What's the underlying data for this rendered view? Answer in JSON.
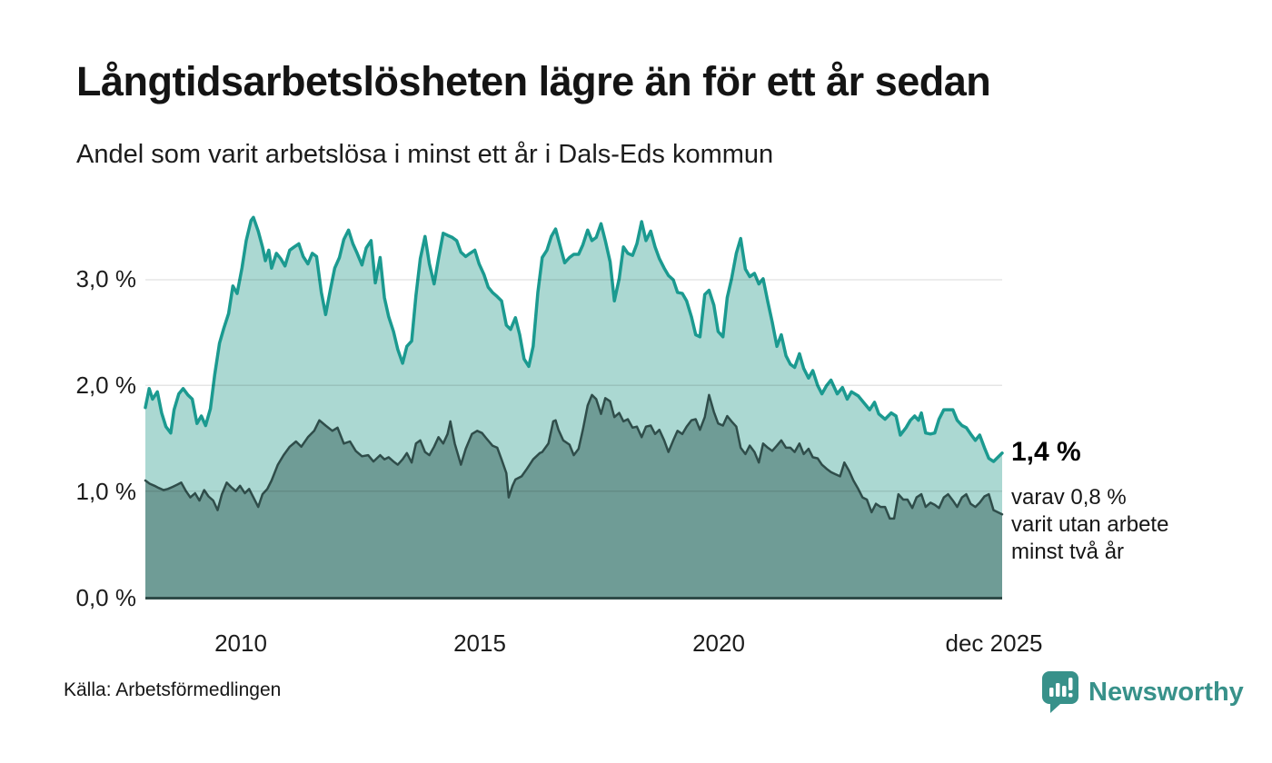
{
  "header": {
    "title": "Långtidsarbetslösheten lägre än för ett år sedan",
    "subtitle": "Andel som varit arbetslösa i minst ett år i Dals-Eds kommun"
  },
  "chart_data": {
    "type": "area",
    "title": "Långtidsarbetslösheten lägre än för ett år sedan",
    "subtitle": "Andel som varit arbetslösa i minst ett år i Dals-Eds kommun",
    "grid": true,
    "legend_position": "none",
    "baseline_color": "#2e4a47",
    "x_axis": {
      "range": [
        2008.0,
        2025.92
      ],
      "ticks": [
        "2010",
        "2015",
        "2020",
        "dec 2025"
      ],
      "tick_values": [
        2010,
        2015,
        2020,
        2025.75
      ]
    },
    "y_axis": {
      "range": [
        0,
        3.67
      ],
      "ticks": [
        "0,0 %",
        "1,0 %",
        "2,0 %",
        "3,0 %"
      ],
      "tick_values": [
        0,
        1,
        2,
        3
      ]
    },
    "annotation": {
      "value_label": "1,4 %",
      "lines": [
        "varav 0,8 %",
        "varit utan arbete",
        "minst två år"
      ]
    },
    "series": [
      {
        "name": "Arbetslösa minst ett år",
        "color": "#1b9a90",
        "fill": "#abd8d2",
        "x": [
          2008.0,
          2008.08,
          2008.15,
          2008.25,
          2008.34,
          2008.43,
          2008.53,
          2008.6,
          2008.7,
          2008.79,
          2008.89,
          2008.98,
          2009.08,
          2009.17,
          2009.26,
          2009.36,
          2009.45,
          2009.55,
          2009.64,
          2009.74,
          2009.83,
          2009.92,
          2010.02,
          2010.11,
          2010.21,
          2010.26,
          2010.36,
          2010.45,
          2010.51,
          2010.58,
          2010.64,
          2010.74,
          2010.83,
          2010.92,
          2011.02,
          2011.11,
          2011.21,
          2011.3,
          2011.4,
          2011.49,
          2011.58,
          2011.68,
          2011.77,
          2011.87,
          2011.96,
          2012.06,
          2012.15,
          2012.25,
          2012.34,
          2012.43,
          2012.53,
          2012.62,
          2012.72,
          2012.81,
          2012.91,
          2013.0,
          2013.09,
          2013.19,
          2013.28,
          2013.38,
          2013.47,
          2013.57,
          2013.66,
          2013.75,
          2013.85,
          2013.94,
          2014.04,
          2014.13,
          2014.23,
          2014.32,
          2014.42,
          2014.51,
          2014.6,
          2014.7,
          2014.79,
          2014.89,
          2014.98,
          2015.08,
          2015.17,
          2015.26,
          2015.36,
          2015.45,
          2015.55,
          2015.64,
          2015.74,
          2015.83,
          2015.92,
          2016.02,
          2016.11,
          2016.21,
          2016.3,
          2016.4,
          2016.49,
          2016.58,
          2016.68,
          2016.77,
          2016.87,
          2016.96,
          2017.06,
          2017.15,
          2017.25,
          2017.34,
          2017.43,
          2017.53,
          2017.62,
          2017.72,
          2017.81,
          2017.91,
          2018.0,
          2018.09,
          2018.19,
          2018.28,
          2018.38,
          2018.47,
          2018.57,
          2018.66,
          2018.75,
          2018.85,
          2018.94,
          2019.04,
          2019.13,
          2019.23,
          2019.32,
          2019.42,
          2019.51,
          2019.6,
          2019.7,
          2019.79,
          2019.89,
          2019.98,
          2020.08,
          2020.17,
          2020.26,
          2020.36,
          2020.45,
          2020.55,
          2020.64,
          2020.74,
          2020.83,
          2020.92,
          2021.02,
          2021.11,
          2021.21,
          2021.3,
          2021.4,
          2021.49,
          2021.58,
          2021.68,
          2021.77,
          2021.87,
          2021.96,
          2022.06,
          2022.15,
          2022.25,
          2022.34,
          2022.47,
          2022.58,
          2022.68,
          2022.77,
          2022.91,
          2023.04,
          2023.15,
          2023.25,
          2023.34,
          2023.47,
          2023.6,
          2023.7,
          2023.79,
          2023.91,
          2024.0,
          2024.09,
          2024.17,
          2024.23,
          2024.32,
          2024.42,
          2024.51,
          2024.6,
          2024.7,
          2024.79,
          2024.89,
          2024.98,
          2025.08,
          2025.17,
          2025.26,
          2025.36,
          2025.45,
          2025.55,
          2025.64,
          2025.74,
          2025.92
        ],
        "y": [
          1.79,
          1.97,
          1.87,
          1.94,
          1.74,
          1.61,
          1.55,
          1.77,
          1.92,
          1.97,
          1.91,
          1.87,
          1.64,
          1.71,
          1.62,
          1.78,
          2.1,
          2.4,
          2.54,
          2.68,
          2.94,
          2.87,
          3.11,
          3.37,
          3.56,
          3.59,
          3.46,
          3.31,
          3.18,
          3.28,
          3.11,
          3.25,
          3.2,
          3.13,
          3.28,
          3.31,
          3.34,
          3.22,
          3.15,
          3.25,
          3.22,
          2.88,
          2.67,
          2.91,
          3.11,
          3.21,
          3.38,
          3.47,
          3.34,
          3.25,
          3.14,
          3.3,
          3.37,
          2.97,
          3.21,
          2.83,
          2.65,
          2.51,
          2.34,
          2.21,
          2.37,
          2.42,
          2.85,
          3.2,
          3.41,
          3.15,
          2.96,
          3.2,
          3.44,
          3.42,
          3.4,
          3.37,
          3.26,
          3.22,
          3.25,
          3.28,
          3.15,
          3.05,
          2.93,
          2.88,
          2.84,
          2.8,
          2.57,
          2.53,
          2.64,
          2.48,
          2.25,
          2.18,
          2.37,
          2.88,
          3.21,
          3.28,
          3.41,
          3.48,
          3.31,
          3.16,
          3.21,
          3.24,
          3.24,
          3.33,
          3.47,
          3.37,
          3.4,
          3.53,
          3.37,
          3.17,
          2.8,
          3.01,
          3.31,
          3.25,
          3.23,
          3.34,
          3.55,
          3.37,
          3.46,
          3.31,
          3.2,
          3.11,
          3.04,
          3.0,
          2.88,
          2.87,
          2.8,
          2.65,
          2.48,
          2.46,
          2.86,
          2.9,
          2.76,
          2.51,
          2.46,
          2.83,
          3.01,
          3.25,
          3.39,
          3.1,
          3.03,
          3.06,
          2.96,
          3.01,
          2.79,
          2.6,
          2.37,
          2.48,
          2.28,
          2.2,
          2.17,
          2.3,
          2.16,
          2.07,
          2.14,
          2.0,
          1.92,
          2.0,
          2.05,
          1.92,
          1.98,
          1.87,
          1.94,
          1.9,
          1.83,
          1.77,
          1.84,
          1.73,
          1.68,
          1.74,
          1.71,
          1.53,
          1.6,
          1.67,
          1.71,
          1.67,
          1.74,
          1.55,
          1.54,
          1.55,
          1.68,
          1.77,
          1.77,
          1.77,
          1.67,
          1.62,
          1.6,
          1.54,
          1.48,
          1.53,
          1.41,
          1.31,
          1.28,
          1.36
        ]
      },
      {
        "name": "Varav utan arbete minst två år",
        "color": "#2f4d4a",
        "fill": "#6f9c96",
        "x": [
          2008.0,
          2008.09,
          2008.19,
          2008.28,
          2008.38,
          2008.47,
          2008.57,
          2008.66,
          2008.75,
          2008.85,
          2008.94,
          2009.04,
          2009.13,
          2009.23,
          2009.32,
          2009.42,
          2009.51,
          2009.6,
          2009.7,
          2009.79,
          2009.89,
          2009.98,
          2010.08,
          2010.17,
          2010.26,
          2010.36,
          2010.45,
          2010.55,
          2010.64,
          2010.77,
          2010.89,
          2011.02,
          2011.15,
          2011.26,
          2011.4,
          2011.53,
          2011.64,
          2011.77,
          2011.91,
          2012.02,
          2012.15,
          2012.28,
          2012.4,
          2012.53,
          2012.66,
          2012.77,
          2012.91,
          2013.0,
          2013.09,
          2013.19,
          2013.28,
          2013.38,
          2013.47,
          2013.57,
          2013.66,
          2013.75,
          2013.85,
          2013.94,
          2014.04,
          2014.13,
          2014.23,
          2014.32,
          2014.38,
          2014.47,
          2014.6,
          2014.7,
          2014.83,
          2014.94,
          2015.04,
          2015.13,
          2015.26,
          2015.36,
          2015.45,
          2015.55,
          2015.6,
          2015.68,
          2015.74,
          2015.87,
          2015.98,
          2016.11,
          2016.25,
          2016.3,
          2016.43,
          2016.53,
          2016.58,
          2016.64,
          2016.74,
          2016.87,
          2016.96,
          2017.06,
          2017.15,
          2017.25,
          2017.34,
          2017.43,
          2017.53,
          2017.62,
          2017.72,
          2017.81,
          2017.91,
          2018.0,
          2018.09,
          2018.19,
          2018.28,
          2018.38,
          2018.47,
          2018.57,
          2018.66,
          2018.75,
          2018.85,
          2018.94,
          2019.04,
          2019.13,
          2019.23,
          2019.32,
          2019.42,
          2019.51,
          2019.6,
          2019.7,
          2019.79,
          2019.89,
          2019.98,
          2020.08,
          2020.17,
          2020.26,
          2020.36,
          2020.45,
          2020.55,
          2020.64,
          2020.74,
          2020.83,
          2020.92,
          2021.02,
          2021.11,
          2021.21,
          2021.3,
          2021.4,
          2021.49,
          2021.58,
          2021.68,
          2021.77,
          2021.87,
          2021.96,
          2022.06,
          2022.15,
          2022.25,
          2022.34,
          2022.43,
          2022.53,
          2022.62,
          2022.72,
          2022.81,
          2022.91,
          2023.0,
          2023.09,
          2023.19,
          2023.28,
          2023.38,
          2023.47,
          2023.57,
          2023.66,
          2023.75,
          2023.85,
          2023.94,
          2024.04,
          2024.13,
          2024.23,
          2024.32,
          2024.42,
          2024.51,
          2024.6,
          2024.7,
          2024.79,
          2024.89,
          2024.98,
          2025.08,
          2025.17,
          2025.26,
          2025.36,
          2025.45,
          2025.55,
          2025.64,
          2025.74,
          2025.92
        ],
        "y": [
          1.1,
          1.07,
          1.05,
          1.03,
          1.01,
          1.02,
          1.04,
          1.06,
          1.08,
          1.0,
          0.94,
          0.98,
          0.91,
          1.01,
          0.95,
          0.91,
          0.82,
          0.97,
          1.08,
          1.04,
          1.0,
          1.05,
          0.98,
          1.02,
          0.94,
          0.85,
          0.97,
          1.02,
          1.1,
          1.25,
          1.34,
          1.42,
          1.47,
          1.42,
          1.51,
          1.57,
          1.67,
          1.62,
          1.57,
          1.6,
          1.45,
          1.47,
          1.38,
          1.33,
          1.34,
          1.28,
          1.34,
          1.3,
          1.32,
          1.28,
          1.25,
          1.3,
          1.36,
          1.27,
          1.45,
          1.48,
          1.37,
          1.34,
          1.42,
          1.51,
          1.45,
          1.54,
          1.66,
          1.45,
          1.25,
          1.4,
          1.54,
          1.57,
          1.55,
          1.5,
          1.43,
          1.41,
          1.3,
          1.17,
          0.94,
          1.05,
          1.11,
          1.14,
          1.21,
          1.3,
          1.36,
          1.37,
          1.45,
          1.66,
          1.67,
          1.58,
          1.48,
          1.44,
          1.34,
          1.4,
          1.58,
          1.81,
          1.91,
          1.87,
          1.73,
          1.88,
          1.85,
          1.7,
          1.74,
          1.66,
          1.68,
          1.6,
          1.61,
          1.51,
          1.61,
          1.62,
          1.54,
          1.58,
          1.48,
          1.37,
          1.48,
          1.57,
          1.54,
          1.61,
          1.67,
          1.68,
          1.58,
          1.7,
          1.91,
          1.75,
          1.64,
          1.62,
          1.71,
          1.66,
          1.61,
          1.41,
          1.35,
          1.43,
          1.37,
          1.27,
          1.45,
          1.41,
          1.38,
          1.43,
          1.48,
          1.41,
          1.41,
          1.37,
          1.45,
          1.35,
          1.4,
          1.32,
          1.31,
          1.25,
          1.21,
          1.18,
          1.16,
          1.14,
          1.27,
          1.19,
          1.1,
          1.02,
          0.94,
          0.92,
          0.8,
          0.88,
          0.85,
          0.85,
          0.74,
          0.74,
          0.97,
          0.92,
          0.92,
          0.84,
          0.94,
          0.97,
          0.85,
          0.89,
          0.87,
          0.84,
          0.94,
          0.97,
          0.91,
          0.85,
          0.94,
          0.97,
          0.88,
          0.85,
          0.89,
          0.95,
          0.97,
          0.82,
          0.78
        ]
      }
    ]
  },
  "footer": {
    "source": "Källa: Arbetsförmedlingen",
    "brand": "Newsworthy"
  }
}
